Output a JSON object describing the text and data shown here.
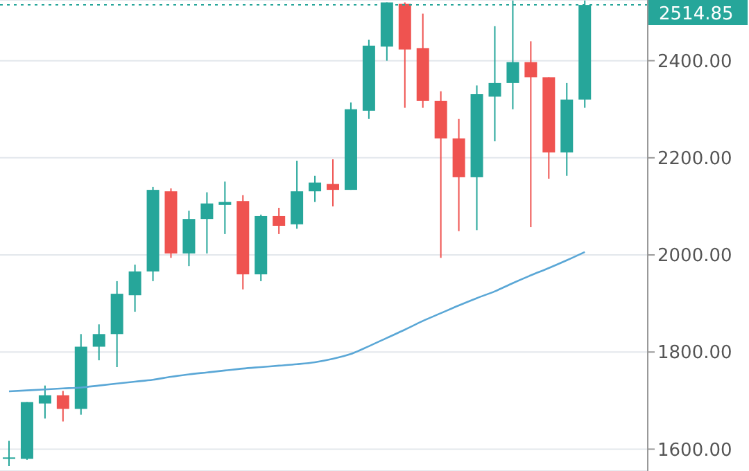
{
  "chart_data": {
    "type": "candlestick",
    "categories": [
      null,
      null,
      null,
      null,
      null,
      null,
      null,
      null,
      null,
      null,
      null,
      null,
      null,
      null,
      null,
      null,
      null,
      null,
      null,
      null,
      null,
      null,
      null,
      null,
      null,
      null,
      null,
      null,
      null,
      null,
      null,
      null,
      null,
      null,
      null,
      null
    ],
    "ohlc": [
      [
        1580,
        1617,
        1565,
        1583
      ],
      [
        1580,
        1697,
        1578,
        1697
      ],
      [
        1694,
        1731,
        1663,
        1711
      ],
      [
        1711,
        1720,
        1657,
        1683
      ],
      [
        1683,
        1837,
        1671,
        1811
      ],
      [
        1811,
        1857,
        1783,
        1837
      ],
      [
        1837,
        1946,
        1769,
        1920
      ],
      [
        1917,
        1980,
        1883,
        1966
      ],
      [
        1966,
        2140,
        1946,
        2134
      ],
      [
        2131,
        2137,
        1994,
        2003
      ],
      [
        2003,
        2091,
        1977,
        2074
      ],
      [
        2074,
        2129,
        2003,
        2106
      ],
      [
        2103,
        2151,
        2043,
        2109
      ],
      [
        2111,
        2123,
        1929,
        1960
      ],
      [
        1960,
        2083,
        1946,
        2080
      ],
      [
        2080,
        2097,
        2043,
        2060
      ],
      [
        2063,
        2194,
        2054,
        2131
      ],
      [
        2131,
        2163,
        2109,
        2149
      ],
      [
        2146,
        2197,
        2100,
        2134
      ],
      [
        2134,
        2314,
        2134,
        2300
      ],
      [
        2297,
        2443,
        2280,
        2431
      ],
      [
        2429,
        2520,
        2400,
        2520
      ],
      [
        2517,
        2520,
        2303,
        2423
      ],
      [
        2426,
        2497,
        2303,
        2317
      ],
      [
        2317,
        2337,
        1994,
        2240
      ],
      [
        2240,
        2280,
        2049,
        2160
      ],
      [
        2160,
        2349,
        2051,
        2331
      ],
      [
        2326,
        2471,
        2234,
        2354
      ],
      [
        2354,
        2524,
        2300,
        2397
      ],
      [
        2397,
        2440,
        2057,
        2366
      ],
      [
        2366,
        2366,
        2157,
        2211
      ],
      [
        2211,
        2354,
        2163,
        2320
      ],
      [
        2320,
        2524,
        2303,
        2514.85
      ],
      null,
      null,
      null
    ],
    "colors": [
      "#26a69a",
      "#26a69a",
      "#26a69a",
      "#ef5350",
      "#26a69a",
      "#26a69a",
      "#26a69a",
      "#26a69a",
      "#26a69a",
      "#ef5350",
      "#26a69a",
      "#26a69a",
      "#26a69a",
      "#ef5350",
      "#26a69a",
      "#ef5350",
      "#26a69a",
      "#26a69a",
      "#ef5350",
      "#26a69a",
      "#26a69a",
      "#26a69a",
      "#ef5350",
      "#ef5350",
      "#ef5350",
      "#ef5350",
      "#26a69a",
      "#26a69a",
      "#26a69a",
      "#ef5350",
      "#ef5350",
      "#26a69a",
      "#26a69a",
      null,
      null,
      null
    ],
    "series": [
      {
        "type": "line",
        "color": "#5aa7d6",
        "values": [
          1719,
          1721,
          1723,
          1725,
          1727,
          1731,
          1735,
          1739,
          1743,
          1749,
          1754,
          1758,
          1762,
          1766,
          1769,
          1772,
          1775,
          1779,
          1786,
          1796,
          1812,
          1829,
          1846,
          1864,
          1880,
          1896,
          1911,
          1925,
          1942,
          1958,
          1973,
          1989,
          2006,
          null,
          null,
          null
        ]
      }
    ],
    "ylim": [
      1555,
      2525
    ],
    "yticks": [
      {
        "value": 1600,
        "label": "1600.00"
      },
      {
        "value": 1800,
        "label": "1800.00"
      },
      {
        "value": 2000,
        "label": "2000.00"
      },
      {
        "value": 2200,
        "label": "2200.00"
      },
      {
        "value": 2400,
        "label": "2400.00"
      }
    ],
    "ref_lines": [
      {
        "axis": "y",
        "value": 2514.85,
        "label": "2514.85",
        "color": "#26a69a",
        "line_style": "dotted"
      }
    ],
    "grid": "y"
  }
}
